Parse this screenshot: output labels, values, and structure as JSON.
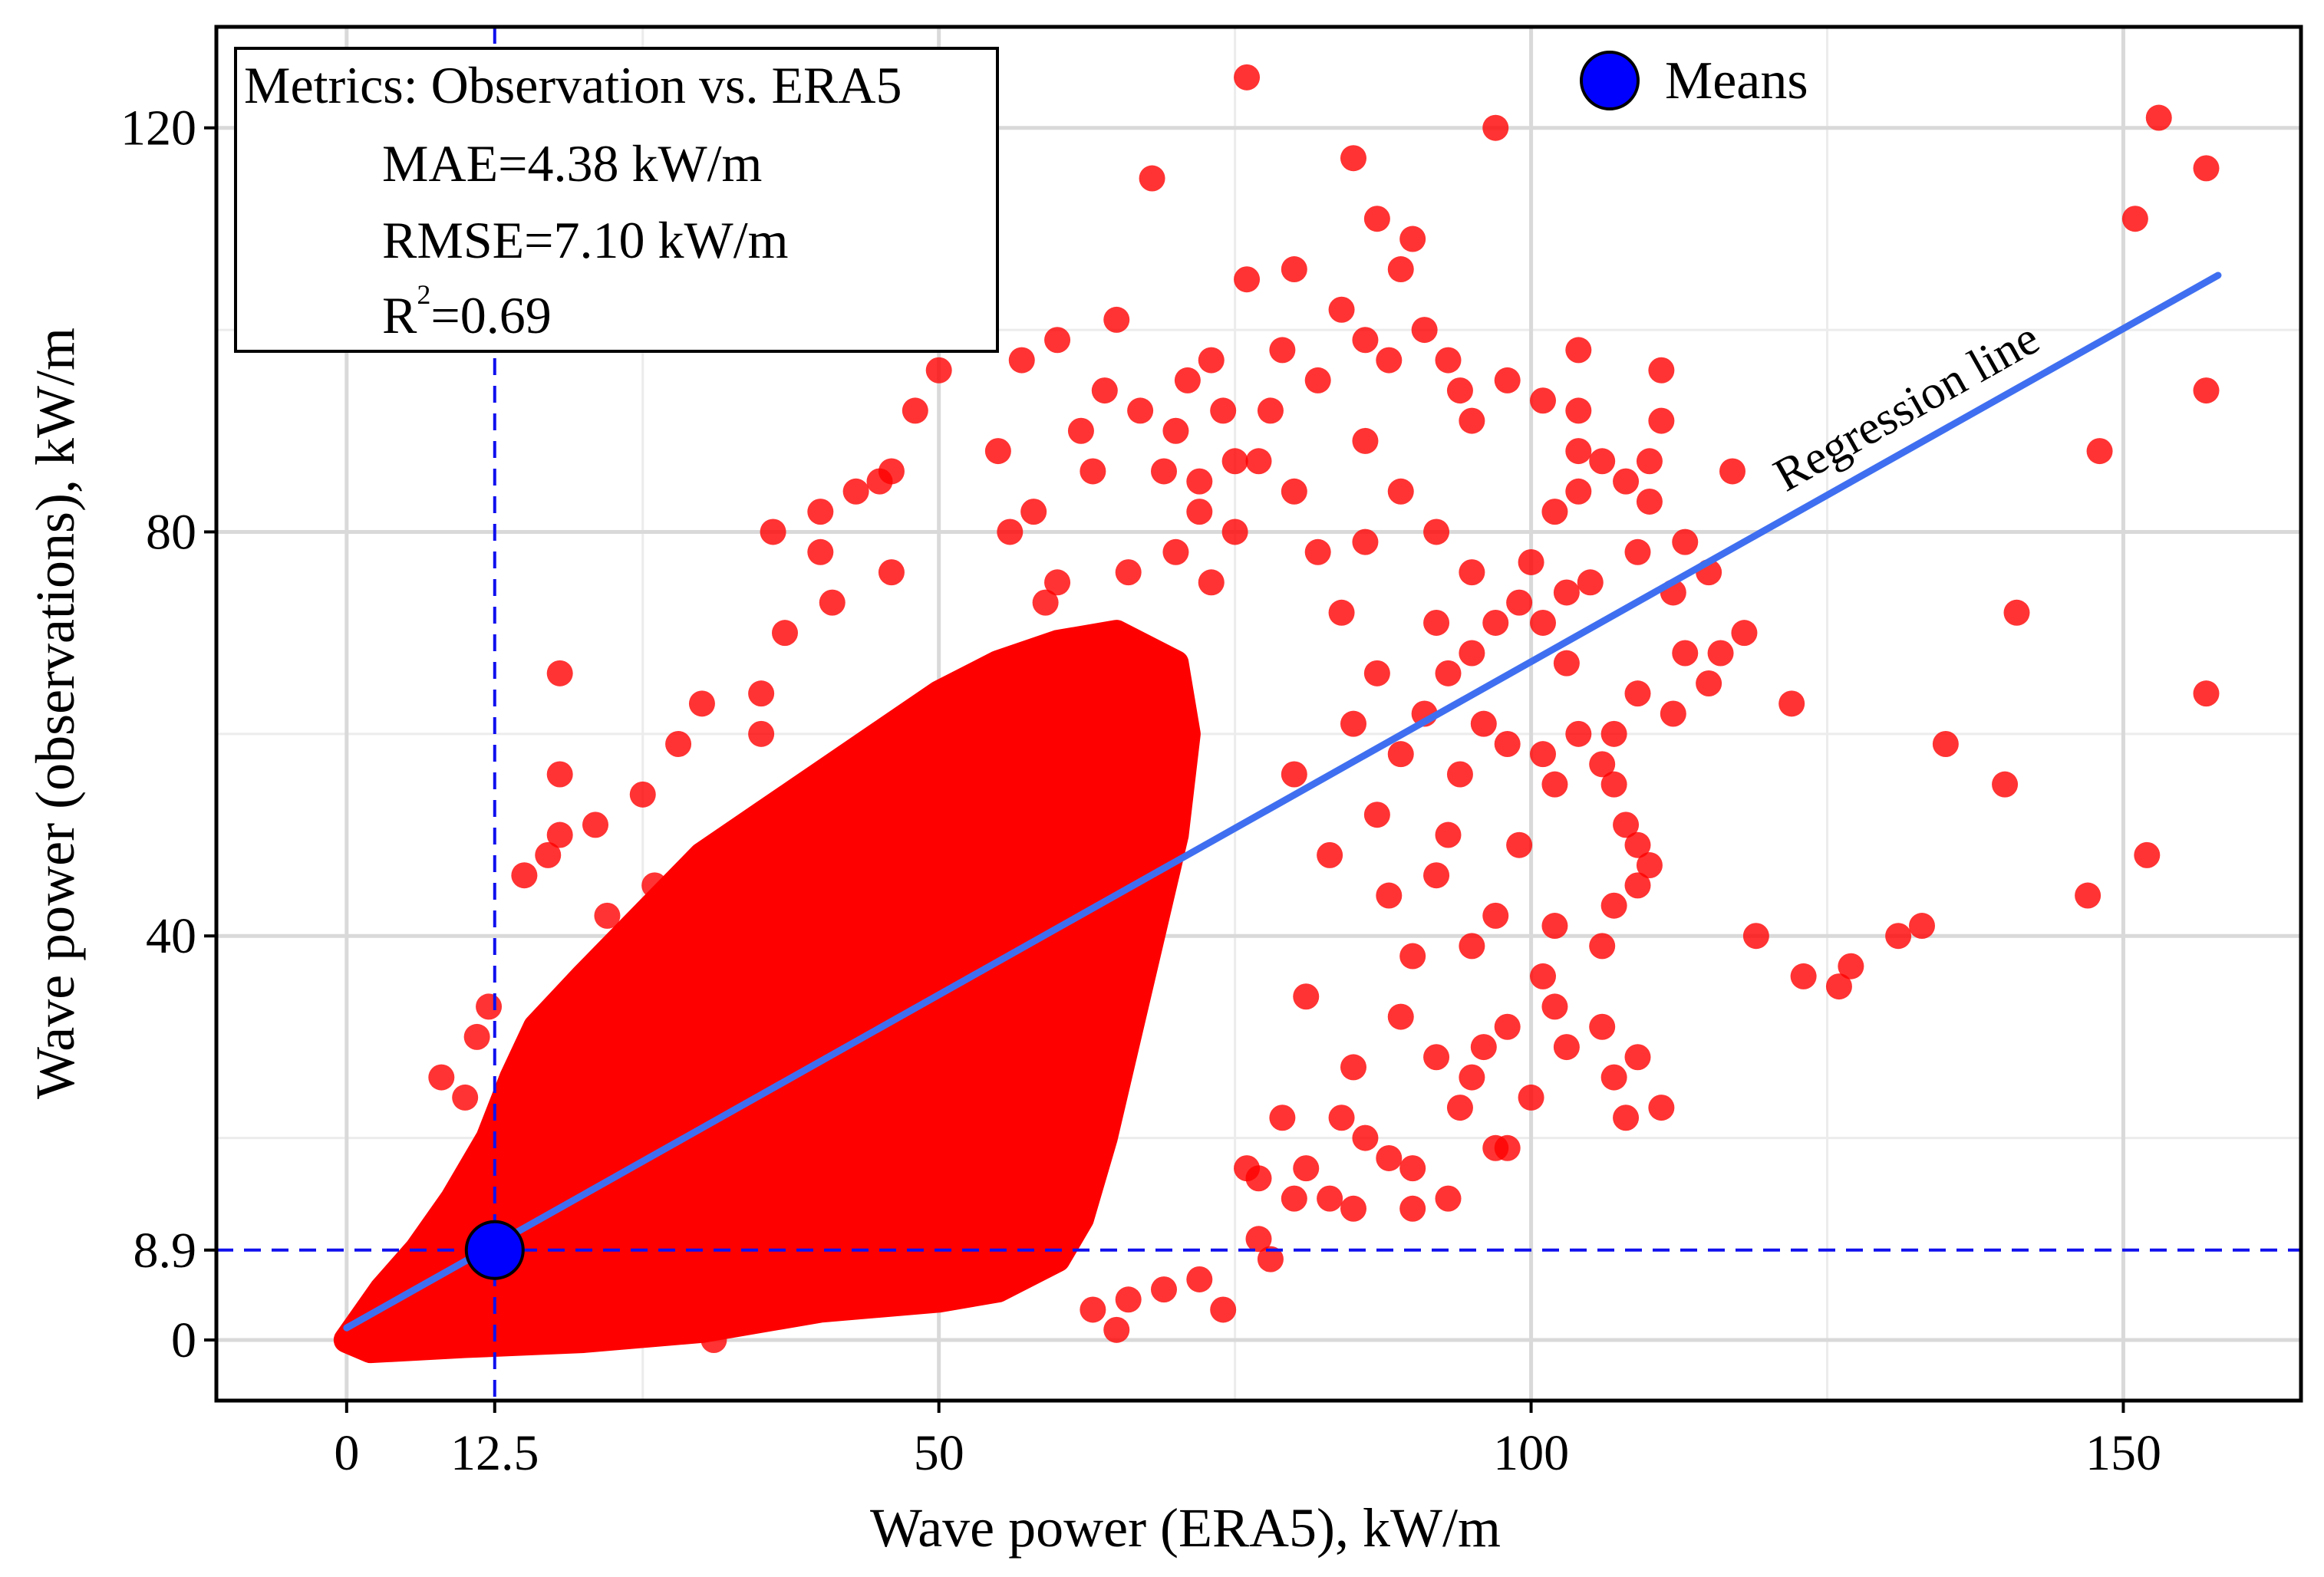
{
  "chart_data": {
    "type": "scatter",
    "title": "",
    "xlabel": "Wave power (ERA5), kW/m",
    "ylabel": "Wave power (observations), kW/m",
    "xlim": [
      -11,
      165
    ],
    "ylim": [
      -6,
      130
    ],
    "x_ticks": [
      0,
      12.5,
      50,
      100,
      150
    ],
    "x_tick_labels": [
      "0",
      "12.5",
      "50",
      "100",
      "150"
    ],
    "y_ticks": [
      0,
      8.9,
      40,
      80,
      120
    ],
    "y_tick_labels": [
      "0",
      "8.9",
      "40",
      "80",
      "120"
    ],
    "x_grid_major": [
      0,
      50,
      100,
      150
    ],
    "x_grid_minor": [
      25,
      75,
      125
    ],
    "y_grid_major": [
      0,
      40,
      80,
      120
    ],
    "y_grid_minor": [
      20,
      60,
      100
    ],
    "grid": true,
    "series": [
      {
        "name": "Observation vs. ERA5",
        "color": "#ff0000",
        "dense_region": {
          "description_points": "Dense cloud of overlapping points; boundary polygon in data units",
          "polygon": [
            [
              0,
              0
            ],
            [
              3,
              5
            ],
            [
              6,
              9
            ],
            [
              9,
              14
            ],
            [
              12,
              20
            ],
            [
              14,
              26
            ],
            [
              16,
              31
            ],
            [
              20,
              36
            ],
            [
              25,
              42
            ],
            [
              30,
              48
            ],
            [
              35,
              52
            ],
            [
              40,
              56
            ],
            [
              45,
              60
            ],
            [
              50,
              64
            ],
            [
              55,
              67
            ],
            [
              60,
              69
            ],
            [
              65,
              70
            ],
            [
              70,
              67
            ],
            [
              71,
              60
            ],
            [
              70,
              50
            ],
            [
              68,
              40
            ],
            [
              66,
              30
            ],
            [
              64,
              20
            ],
            [
              62,
              12
            ],
            [
              60,
              8
            ],
            [
              55,
              5
            ],
            [
              50,
              4
            ],
            [
              40,
              3
            ],
            [
              30,
              1
            ],
            [
              20,
              0
            ],
            [
              10,
              -0.5
            ],
            [
              2,
              -1
            ]
          ]
        },
        "points": [
          [
            76,
            125
          ],
          [
            97,
            120
          ],
          [
            68,
            115
          ],
          [
            85,
            117
          ],
          [
            87,
            111
          ],
          [
            90,
            109
          ],
          [
            89,
            106
          ],
          [
            76,
            105
          ],
          [
            80,
            106
          ],
          [
            84,
            102
          ],
          [
            65,
            101
          ],
          [
            60,
            99
          ],
          [
            57,
            97
          ],
          [
            48,
            92
          ],
          [
            50,
            96
          ],
          [
            46,
            86
          ],
          [
            55,
            88
          ],
          [
            64,
            94
          ],
          [
            67,
            92
          ],
          [
            73,
            97
          ],
          [
            71,
            95
          ],
          [
            79,
            98
          ],
          [
            82,
            95
          ],
          [
            86,
            99
          ],
          [
            88,
            97
          ],
          [
            91,
            100
          ],
          [
            93,
            97
          ],
          [
            95,
            91
          ],
          [
            94,
            94
          ],
          [
            98,
            95
          ],
          [
            101,
            93
          ],
          [
            104,
            92
          ],
          [
            104,
            98
          ],
          [
            106,
            87
          ],
          [
            104,
            88
          ],
          [
            110,
            87
          ],
          [
            108,
            85
          ],
          [
            111,
            96
          ],
          [
            111,
            91
          ],
          [
            110,
            83
          ],
          [
            113,
            79
          ],
          [
            109,
            78
          ],
          [
            112,
            74
          ],
          [
            115,
            76
          ],
          [
            113,
            68
          ],
          [
            117,
            86
          ],
          [
            118,
            70
          ],
          [
            116,
            68
          ],
          [
            115,
            65
          ],
          [
            112,
            62
          ],
          [
            109,
            64
          ],
          [
            107,
            60
          ],
          [
            104,
            60
          ],
          [
            106,
            57
          ],
          [
            103,
            67
          ],
          [
            101,
            71
          ],
          [
            99,
            73
          ],
          [
            97,
            71
          ],
          [
            95,
            68
          ],
          [
            92,
            71
          ],
          [
            93,
            66
          ],
          [
            96,
            61
          ],
          [
            98,
            59
          ],
          [
            94,
            56
          ],
          [
            99,
            49
          ],
          [
            101,
            58
          ],
          [
            102,
            55
          ],
          [
            107,
            55
          ],
          [
            108,
            51
          ],
          [
            109,
            49
          ],
          [
            110,
            47
          ],
          [
            109,
            45
          ],
          [
            107,
            43
          ],
          [
            106,
            39
          ],
          [
            102,
            41
          ],
          [
            101,
            36
          ],
          [
            98,
            31
          ],
          [
            102,
            33
          ],
          [
            103,
            29
          ],
          [
            107,
            26
          ],
          [
            108,
            22
          ],
          [
            111,
            23
          ],
          [
            109,
            28
          ],
          [
            106,
            31
          ],
          [
            100,
            24
          ],
          [
            98,
            19
          ],
          [
            97,
            19
          ],
          [
            94,
            23
          ],
          [
            90,
            17
          ],
          [
            88,
            18
          ],
          [
            86,
            20
          ],
          [
            84,
            22
          ],
          [
            81,
            17
          ],
          [
            80,
            14
          ],
          [
            83,
            14
          ],
          [
            85,
            13
          ],
          [
            90,
            13
          ],
          [
            93,
            14
          ],
          [
            77,
            16
          ],
          [
            76,
            17
          ],
          [
            79,
            22
          ],
          [
            85,
            27
          ],
          [
            81,
            34
          ],
          [
            89,
            32
          ],
          [
            92,
            28
          ],
          [
            95,
            26
          ],
          [
            96,
            29
          ],
          [
            90,
            38
          ],
          [
            88,
            44
          ],
          [
            92,
            46
          ],
          [
            95,
            39
          ],
          [
            97,
            42
          ],
          [
            93,
            50
          ],
          [
            87,
            52
          ],
          [
            83,
            48
          ],
          [
            80,
            56
          ],
          [
            85,
            61
          ],
          [
            89,
            58
          ],
          [
            91,
            62
          ],
          [
            87,
            66
          ],
          [
            84,
            72
          ],
          [
            82,
            78
          ],
          [
            80,
            84
          ],
          [
            77,
            87
          ],
          [
            75,
            80
          ],
          [
            73,
            75
          ],
          [
            72,
            85
          ],
          [
            78,
            92
          ],
          [
            86,
            89
          ],
          [
            89,
            84
          ],
          [
            86,
            79
          ],
          [
            92,
            80
          ],
          [
            95,
            76
          ],
          [
            100,
            77
          ],
          [
            102,
            82
          ],
          [
            104,
            84
          ],
          [
            105,
            75
          ],
          [
            103,
            74
          ],
          [
            119,
            40
          ],
          [
            122,
            63
          ],
          [
            123,
            36
          ],
          [
            126,
            35
          ],
          [
            127,
            37
          ],
          [
            131,
            40
          ],
          [
            133,
            41
          ],
          [
            135,
            59
          ],
          [
            140,
            55
          ],
          [
            141,
            72
          ],
          [
            147,
            44
          ],
          [
            148,
            88
          ],
          [
            151,
            111
          ],
          [
            152,
            48
          ],
          [
            153,
            121
          ],
          [
            157,
            116
          ],
          [
            157,
            94
          ],
          [
            157,
            64
          ],
          [
            77,
            10
          ],
          [
            72,
            6
          ],
          [
            69,
            5
          ],
          [
            66,
            4
          ],
          [
            63,
            3
          ],
          [
            31,
            0
          ],
          [
            35,
            64
          ],
          [
            30,
            63
          ],
          [
            28,
            59
          ],
          [
            35,
            60
          ],
          [
            18,
            66
          ],
          [
            18,
            50
          ],
          [
            17,
            48
          ],
          [
            15,
            46
          ],
          [
            21,
            51
          ],
          [
            18,
            56
          ],
          [
            25,
            54
          ],
          [
            37,
            70
          ],
          [
            41,
            73
          ],
          [
            40,
            78
          ],
          [
            46,
            76
          ],
          [
            40,
            82
          ],
          [
            36,
            80
          ],
          [
            43,
            84
          ],
          [
            45,
            85
          ],
          [
            56,
            80
          ],
          [
            58,
            82
          ],
          [
            59,
            73
          ],
          [
            60,
            75
          ],
          [
            66,
            76
          ],
          [
            70,
            78
          ],
          [
            72,
            82
          ],
          [
            75,
            87
          ],
          [
            74,
            92
          ],
          [
            70,
            90
          ],
          [
            69,
            86
          ],
          [
            63,
            86
          ],
          [
            62,
            90
          ],
          [
            26,
            45
          ],
          [
            22,
            42
          ],
          [
            11,
            30
          ],
          [
            12,
            33
          ],
          [
            8,
            26
          ],
          [
            10,
            24
          ],
          [
            65,
            1
          ],
          [
            74,
            3
          ],
          [
            78,
            8
          ]
        ]
      },
      {
        "name": "Means",
        "x": [
          12.5
        ],
        "y": [
          8.9
        ],
        "color": "#0000ff"
      }
    ],
    "regression_line": {
      "label": "Regression line",
      "x": [
        0,
        158
      ],
      "y": [
        1.2,
        105.4
      ],
      "color": "#3f6ff0"
    },
    "mean_guides": {
      "x": 12.5,
      "y": 8.9
    },
    "legend": {
      "position": "top-center",
      "entries": [
        "Means"
      ]
    },
    "metrics_box": {
      "position": "top-left",
      "lines": [
        "Metrics: Observation vs. ERA5",
        "MAE=4.38 kW/m",
        "RMSE=7.10 kW/m",
        "R",
        "2",
        "=0.69"
      ]
    }
  }
}
